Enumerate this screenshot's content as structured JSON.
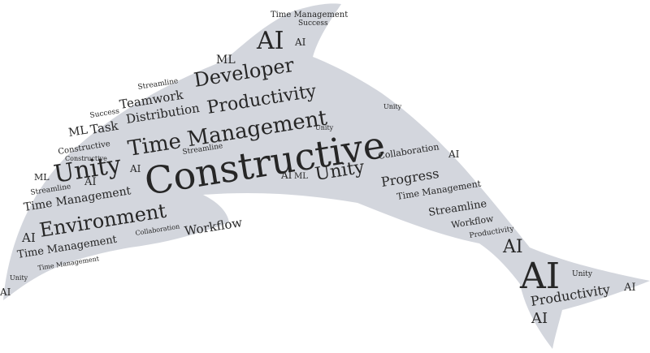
{
  "colors": {
    "shape_fill": "#d3d6dd",
    "text": "#262626",
    "background": "#ffffff"
  },
  "words": {
    "w01": "Time Management",
    "w02": "Success",
    "w03": "AI",
    "w04": "AI",
    "w05": "ML",
    "w06": "Developer",
    "w07": "Streamline",
    "w08": "Productivity",
    "w09": "Teamwork",
    "w10": "Success",
    "w11": "Distribution",
    "w12": "Time Management",
    "w13": "Unity",
    "w14": "ML",
    "w15": "Task",
    "w16": "Unity",
    "w17": "Constructive",
    "w18": "Constructive",
    "w19": "Unity",
    "w20": "Streamline",
    "w21": "Constructive",
    "w22": "AI",
    "w23": "Collaboration",
    "w24": "AI",
    "w25": "ML",
    "w26": "Streamline",
    "w27": "AI",
    "w28": "Unity",
    "w29": "AI",
    "w30": "ML",
    "w31": "Progress",
    "w32": "Time Management",
    "w33": "Time Management",
    "w34": "Environment",
    "w35": "Streamline",
    "w36": "Workflow",
    "w37": "AI",
    "w38": "Collaboration",
    "w39": "Workflow",
    "w40": "Productivity",
    "w41": "Time Management",
    "w42": "AI",
    "w43": "Unity",
    "w44": "Time Management",
    "w45": "AI",
    "w46": "Unity",
    "w47": "AI",
    "w48": "Productivity",
    "w49": "AI",
    "w50": "AI"
  }
}
